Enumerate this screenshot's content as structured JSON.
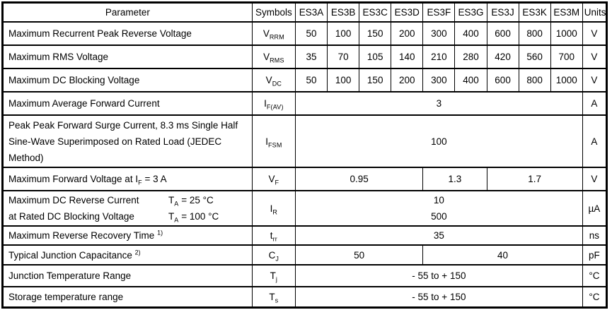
{
  "table": {
    "columns": [
      "Parameter",
      "Symbols",
      "ES3A",
      "ES3B",
      "ES3C",
      "ES3D",
      "ES3F",
      "ES3G",
      "ES3J",
      "ES3K",
      "ES3M",
      "Units"
    ],
    "rows": [
      {
        "name": "maximum-recurrent-peak-reverse-voltage",
        "parameter": [
          {
            "t": "Maximum Recurrent Peak Reverse Voltage"
          }
        ],
        "symbol": [
          {
            "t": "V"
          },
          {
            "sub": "RRM"
          }
        ],
        "values": [
          {
            "text": "50"
          },
          {
            "text": "100"
          },
          {
            "text": "150"
          },
          {
            "text": "200"
          },
          {
            "text": "300"
          },
          {
            "text": "400"
          },
          {
            "text": "600"
          },
          {
            "text": "800"
          },
          {
            "text": "1000"
          }
        ],
        "unit": "V"
      },
      {
        "name": "maximum-rms-voltage",
        "parameter": [
          {
            "t": "Maximum RMS Voltage"
          }
        ],
        "symbol": [
          {
            "t": "V"
          },
          {
            "sub": "RMS"
          }
        ],
        "values": [
          {
            "text": "35"
          },
          {
            "text": "70"
          },
          {
            "text": "105"
          },
          {
            "text": "140"
          },
          {
            "text": "210"
          },
          {
            "text": "280"
          },
          {
            "text": "420"
          },
          {
            "text": "560"
          },
          {
            "text": "700"
          }
        ],
        "unit": "V"
      },
      {
        "name": "maximum-dc-blocking-voltage",
        "parameter": [
          {
            "t": "Maximum DC Blocking Voltage"
          }
        ],
        "symbol": [
          {
            "t": "V"
          },
          {
            "sub": "DC"
          }
        ],
        "values": [
          {
            "text": "50"
          },
          {
            "text": "100"
          },
          {
            "text": "150"
          },
          {
            "text": "200"
          },
          {
            "text": "300"
          },
          {
            "text": "400"
          },
          {
            "text": "600"
          },
          {
            "text": "800"
          },
          {
            "text": "1000"
          }
        ],
        "unit": "V"
      },
      {
        "name": "maximum-average-forward-current",
        "parameter": [
          {
            "t": "Maximum Average Forward Current"
          }
        ],
        "symbol": [
          {
            "t": "I"
          },
          {
            "sub": "F(AV)"
          }
        ],
        "values": [
          {
            "text": "3",
            "span": 9
          }
        ],
        "unit": "A"
      },
      {
        "name": "peak-forward-surge-current",
        "parameter": [
          {
            "t": "Peak Peak Forward Surge Current, 8.3 ms Single Half"
          },
          {
            "br": true
          },
          {
            "t": "Sine-Wave Superimposed on Rated Load (JEDEC"
          },
          {
            "br": true
          },
          {
            "t": "Method)"
          }
        ],
        "symbol": [
          {
            "t": "I"
          },
          {
            "sub": "FSM"
          }
        ],
        "values": [
          {
            "text": "100",
            "span": 9
          }
        ],
        "unit": "A"
      },
      {
        "name": "maximum-forward-voltage",
        "parameter": [
          {
            "t": "Maximum Forward Voltage at I"
          },
          {
            "sub": "F"
          },
          {
            "t": " = 3 A"
          }
        ],
        "symbol": [
          {
            "t": "V"
          },
          {
            "sub": "F"
          }
        ],
        "values": [
          {
            "text": "0.95",
            "span": 4
          },
          {
            "text": "1.3",
            "span": 2
          },
          {
            "text": "1.7",
            "span": 3
          }
        ],
        "unit": "V"
      },
      {
        "name": "maximum-dc-reverse-current",
        "parameter": [
          {
            "t": "Maximum DC Reverse Current",
            "tab": true
          },
          {
            "t": "T"
          },
          {
            "sub": "A"
          },
          {
            "t": " = 25 °C"
          },
          {
            "br": true
          },
          {
            "t": "at Rated DC Blocking Voltage",
            "tab": true
          },
          {
            "t": "T"
          },
          {
            "sub": "A"
          },
          {
            "t": " = 100 °C"
          }
        ],
        "symbol": [
          {
            "t": "I"
          },
          {
            "sub": "R"
          }
        ],
        "values": [
          {
            "lines": [
              "10",
              "500"
            ],
            "span": 9
          }
        ],
        "unit": "µA"
      },
      {
        "name": "maximum-reverse-recovery-time",
        "parameter": [
          {
            "t": "Maximum Reverse Recovery Time "
          },
          {
            "sup": "1)"
          }
        ],
        "symbol": [
          {
            "t": "t"
          },
          {
            "sub": "rr"
          }
        ],
        "values": [
          {
            "text": "35",
            "span": 9
          }
        ],
        "unit": "ns"
      },
      {
        "name": "typical-junction-capacitance",
        "parameter": [
          {
            "t": "Typical Junction Capacitance "
          },
          {
            "sup": "2)"
          }
        ],
        "symbol": [
          {
            "t": "C"
          },
          {
            "sub": "J"
          }
        ],
        "values": [
          {
            "text": "50",
            "span": 4
          },
          {
            "text": "40",
            "span": 5
          }
        ],
        "unit": "pF"
      },
      {
        "name": "junction-temperature-range",
        "parameter": [
          {
            "t": "Junction Temperature Range"
          }
        ],
        "symbol": [
          {
            "t": "T"
          },
          {
            "sub": "j"
          }
        ],
        "values": [
          {
            "text": "- 55 to + 150",
            "span": 9
          }
        ],
        "unit": "°C"
      },
      {
        "name": "storage-temperature-range",
        "parameter": [
          {
            "t": "Storage temperature range"
          }
        ],
        "symbol": [
          {
            "t": "T"
          },
          {
            "sub": "s"
          }
        ],
        "values": [
          {
            "text": "- 55 to + 150",
            "span": 9
          }
        ],
        "unit": "°C"
      }
    ]
  }
}
